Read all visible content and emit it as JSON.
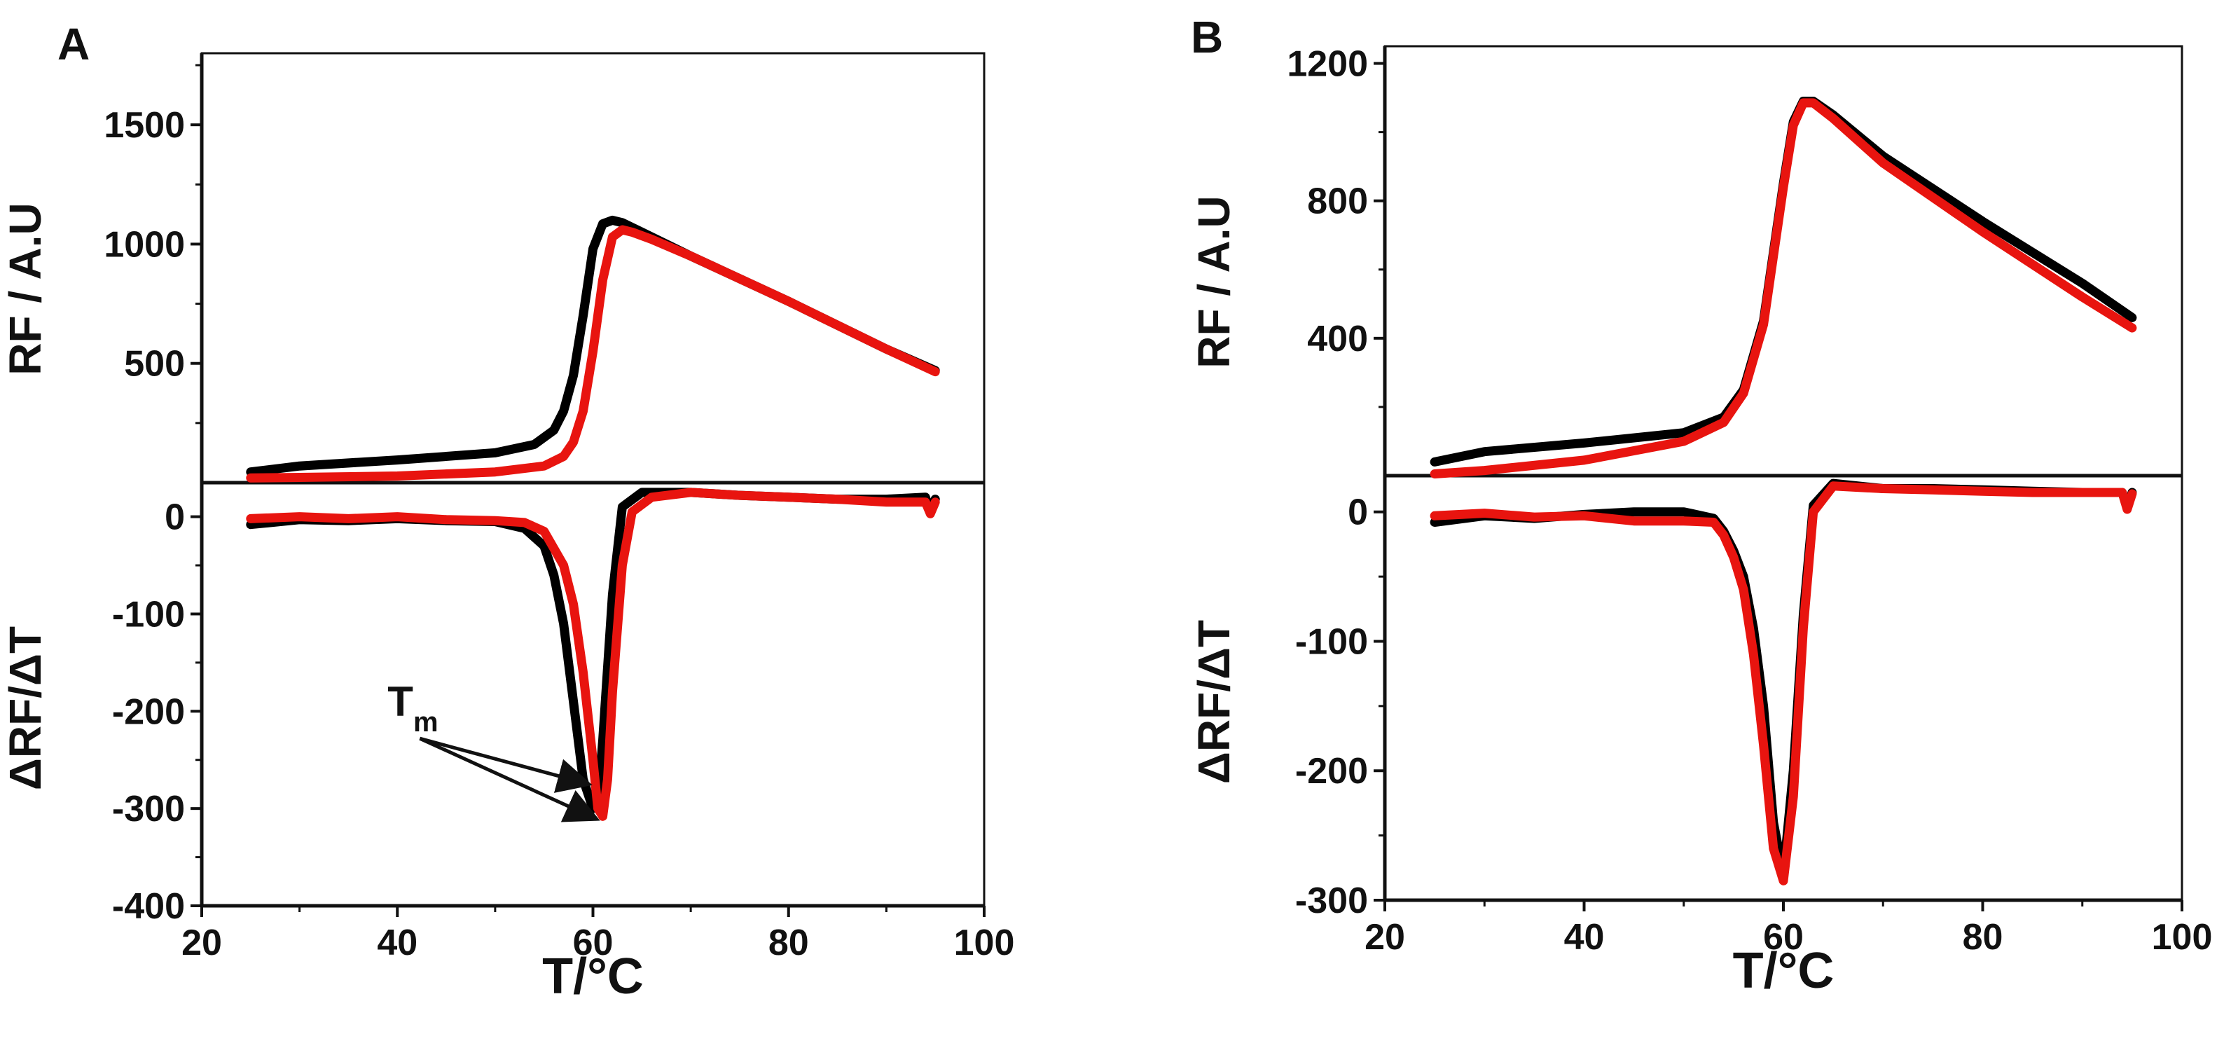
{
  "chart_data": [
    {
      "panel": "A",
      "type": "line",
      "xlabel": "T/°C",
      "xlim": [
        20,
        100
      ],
      "xticks": [
        "20",
        "40",
        "60",
        "80",
        "100"
      ],
      "top": {
        "ylabel": "RF / A.U",
        "ylim": [
          0,
          1800
        ],
        "yticks": [
          "500",
          "1000",
          "1500"
        ],
        "series": [
          {
            "name": "black",
            "color": "#000000",
            "x": [
              25,
              30,
              40,
              50,
              54,
              56,
              57,
              58,
              59,
              60,
              61,
              62,
              63,
              65,
              70,
              80,
              90,
              95
            ],
            "y": [
              45,
              70,
              95,
              125,
              160,
              220,
              300,
              450,
              700,
              980,
              1085,
              1100,
              1090,
              1050,
              950,
              760,
              560,
              470
            ]
          },
          {
            "name": "red",
            "color": "#e8140f",
            "x": [
              25,
              30,
              40,
              50,
              55,
              57,
              58,
              59,
              60,
              61,
              62,
              63,
              64,
              66,
              70,
              80,
              90,
              95
            ],
            "y": [
              20,
              22,
              28,
              45,
              70,
              110,
              170,
              300,
              550,
              850,
              1030,
              1060,
              1050,
              1020,
              950,
              760,
              560,
              465
            ]
          }
        ]
      },
      "bottom": {
        "ylabel": "ΔRF/ΔT",
        "ylim": [
          -400,
          35
        ],
        "yticks": [
          "0",
          "-100",
          "-200",
          "-300",
          "-400"
        ],
        "series": [
          {
            "name": "black",
            "color": "#000000",
            "x": [
              25,
              30,
              35,
              40,
              45,
              50,
              53,
              55,
              56,
              57,
              58,
              59,
              60,
              60.5,
              61,
              62,
              63,
              65,
              70,
              75,
              80,
              85,
              90,
              94,
              94.5,
              95
            ],
            "y": [
              -8,
              -3,
              -4,
              -2,
              -4,
              -5,
              -12,
              -30,
              -60,
              -110,
              -190,
              -270,
              -300,
              -295,
              -230,
              -80,
              10,
              25,
              25,
              22,
              20,
              18,
              18,
              20,
              5,
              18
            ]
          },
          {
            "name": "red",
            "color": "#e8140f",
            "x": [
              25,
              30,
              35,
              40,
              45,
              50,
              53,
              55,
              57,
              58,
              59,
              60,
              60.5,
              61,
              61.5,
              62,
              63,
              64,
              66,
              70,
              75,
              80,
              85,
              90,
              94,
              94.5,
              95
            ],
            "y": [
              -2,
              0,
              -2,
              0,
              -3,
              -4,
              -6,
              -15,
              -50,
              -90,
              -160,
              -250,
              -300,
              -308,
              -270,
              -180,
              -50,
              5,
              20,
              25,
              22,
              20,
              18,
              15,
              15,
              3,
              15
            ]
          }
        ]
      },
      "annotation": {
        "text": "T",
        "subscript": "m"
      }
    },
    {
      "panel": "B",
      "type": "line",
      "xlabel": "T/°C",
      "xlim": [
        20,
        100
      ],
      "xticks": [
        "20",
        "40",
        "60",
        "80",
        "100"
      ],
      "top": {
        "ylabel": "RF / A.U",
        "ylim": [
          0,
          1250
        ],
        "yticks": [
          "400",
          "800",
          "1200"
        ],
        "series": [
          {
            "name": "black",
            "color": "#000000",
            "x": [
              25,
              30,
              40,
              50,
              54,
              56,
              58,
              59,
              60,
              61,
              62,
              63,
              65,
              70,
              80,
              90,
              95
            ],
            "y": [
              40,
              70,
              95,
              125,
              170,
              250,
              450,
              650,
              850,
              1030,
              1090,
              1090,
              1050,
              930,
              740,
              560,
              460
            ]
          },
          {
            "name": "red",
            "color": "#e8140f",
            "x": [
              25,
              30,
              40,
              50,
              54,
              56,
              58,
              59,
              60,
              61,
              62,
              63,
              65,
              70,
              80,
              90,
              95
            ],
            "y": [
              5,
              15,
              45,
              100,
              155,
              240,
              440,
              640,
              840,
              1020,
              1085,
              1085,
              1040,
              910,
              710,
              520,
              430
            ]
          }
        ]
      },
      "bottom": {
        "ylabel": "ΔRF/ΔT",
        "ylim": [
          -300,
          28
        ],
        "yticks": [
          "0",
          "-100",
          "-200",
          "-300"
        ],
        "series": [
          {
            "name": "black",
            "color": "#000000",
            "x": [
              25,
              30,
              35,
              40,
              45,
              50,
              53,
              54,
              55,
              56,
              57,
              58,
              59,
              60,
              61,
              62,
              63,
              65,
              70,
              75,
              80,
              85,
              90,
              94,
              94.5,
              95
            ],
            "y": [
              -8,
              -3,
              -5,
              -2,
              0,
              0,
              -5,
              -15,
              -30,
              -50,
              -90,
              -150,
              -240,
              -280,
              -200,
              -80,
              5,
              22,
              18,
              18,
              17,
              16,
              15,
              15,
              3,
              15
            ]
          },
          {
            "name": "red",
            "color": "#e8140f",
            "x": [
              25,
              30,
              35,
              40,
              45,
              50,
              53,
              54,
              55,
              56,
              57,
              58,
              59,
              60,
              61,
              62,
              63,
              65,
              70,
              75,
              80,
              85,
              90,
              94,
              94.5,
              95
            ],
            "y": [
              -3,
              -1,
              -4,
              -3,
              -7,
              -7,
              -8,
              -18,
              -35,
              -60,
              -110,
              -180,
              -260,
              -285,
              -220,
              -90,
              0,
              20,
              18,
              17,
              16,
              15,
              15,
              15,
              2,
              14
            ]
          }
        ]
      }
    }
  ]
}
